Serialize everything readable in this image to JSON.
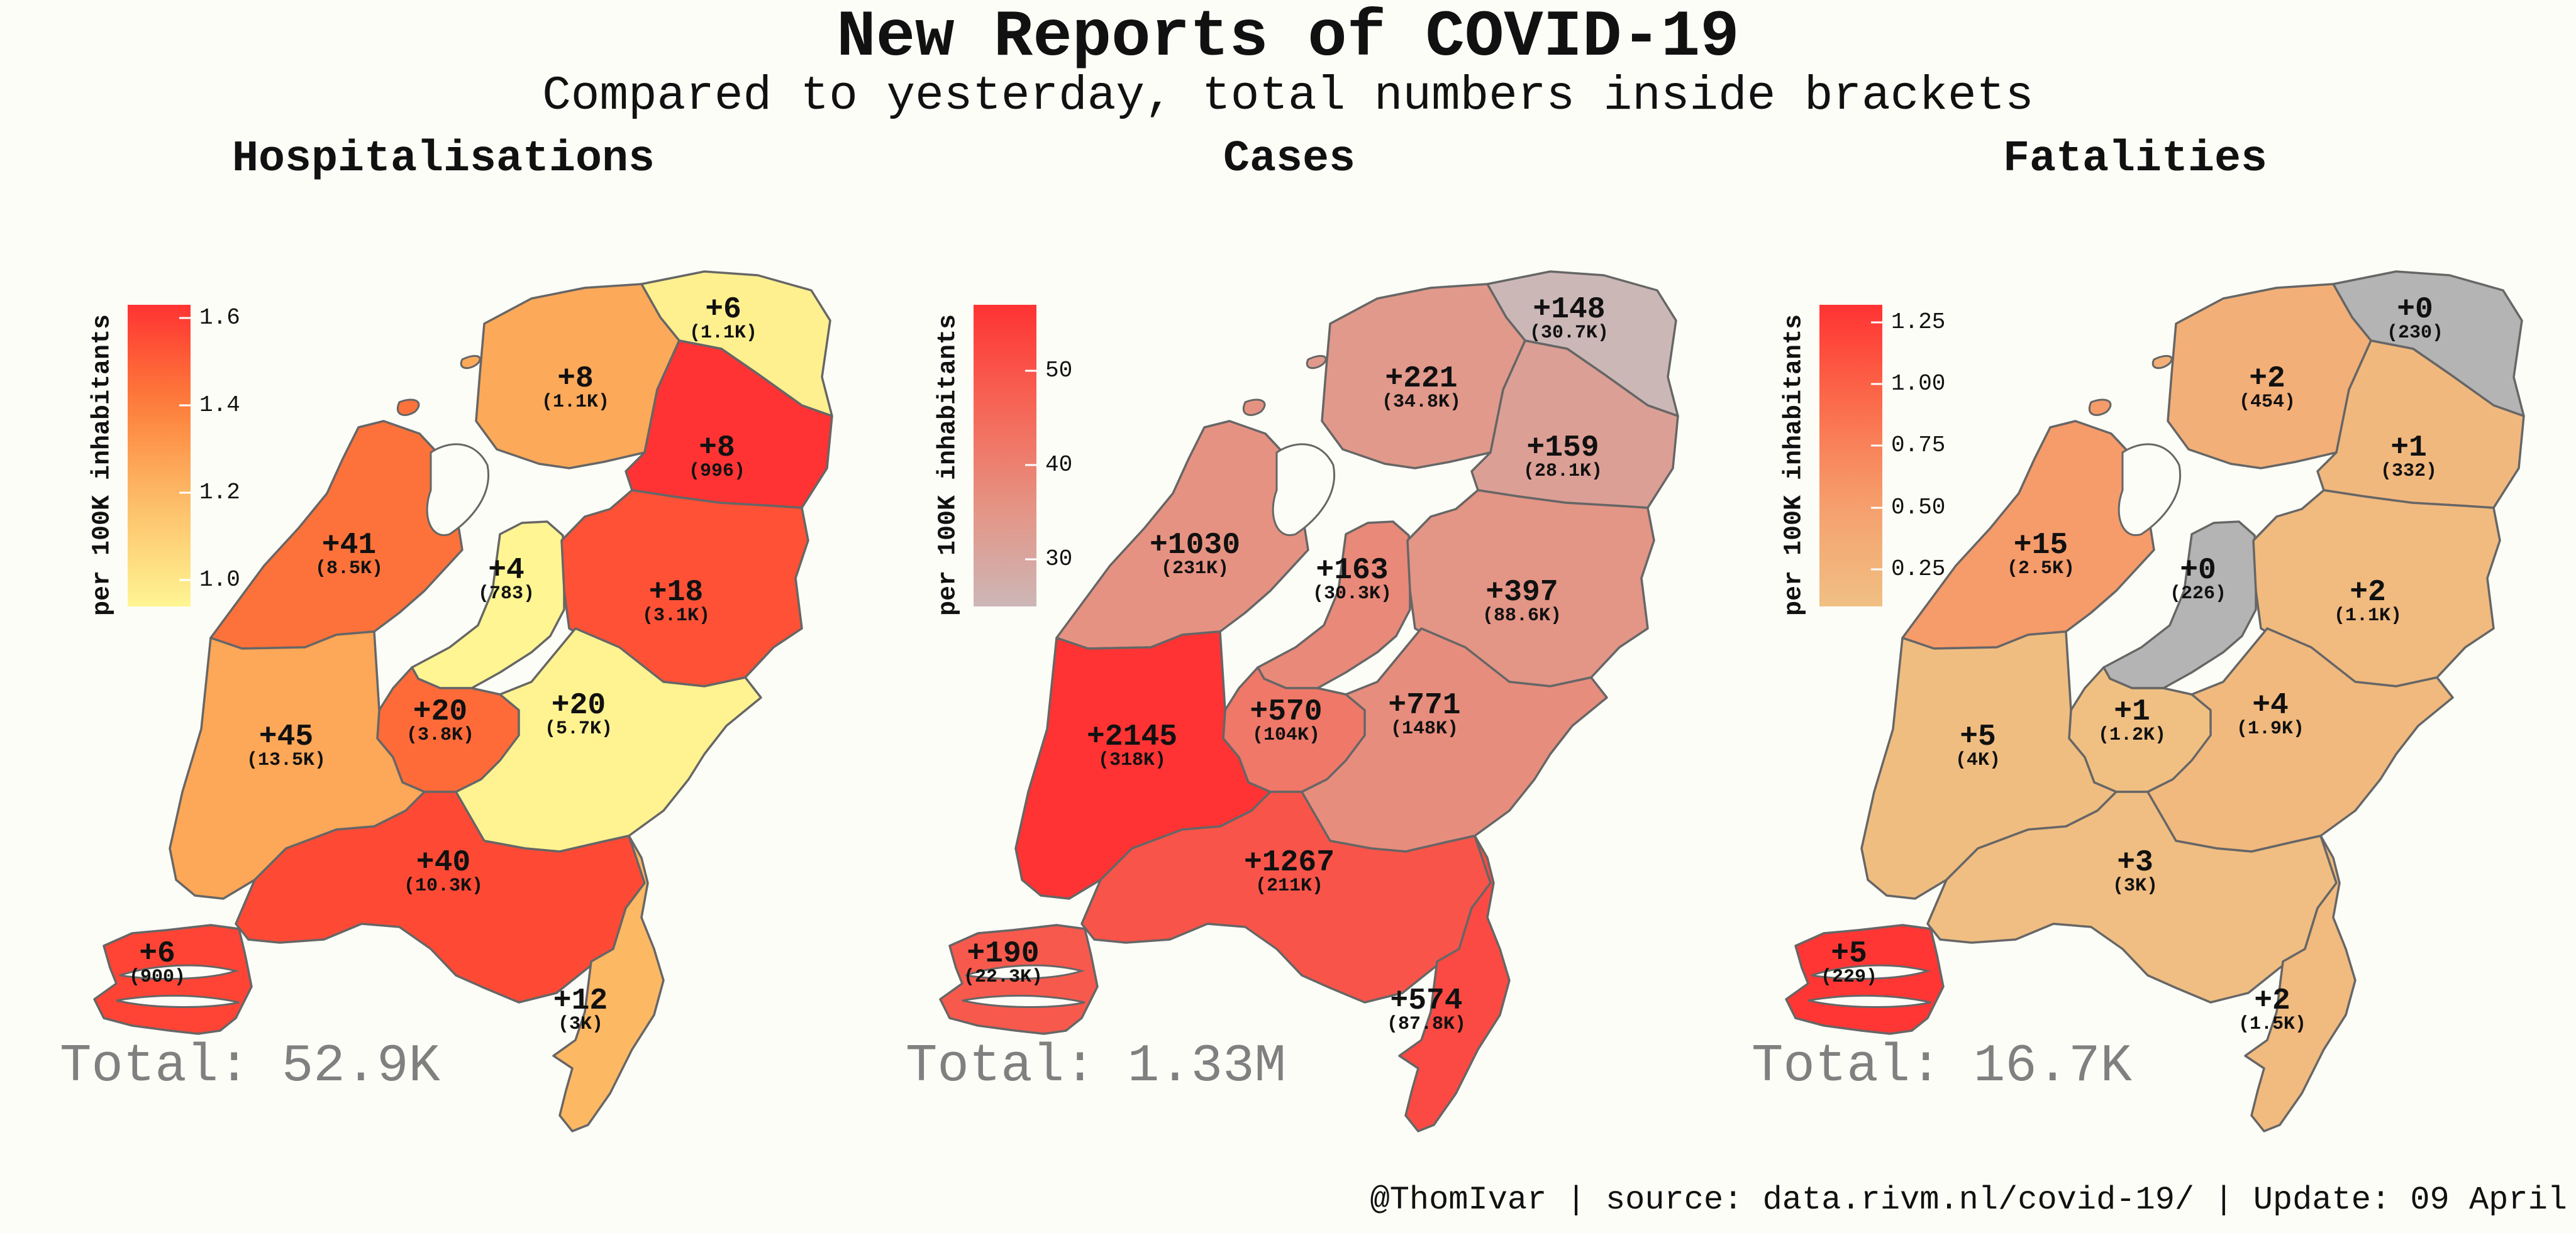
{
  "title": "New Reports of COVID-19",
  "subtitle": "Compared to yesterday, total numbers inside brackets",
  "footer": "@ThomIvar | source: data.rivm.nl/covid-19/ | Update: 09 April",
  "colors": {
    "background": "#fdfdf7",
    "border": "#666666",
    "no_data": "#b4b4b4"
  },
  "panels": [
    {
      "title": "Hospitalisations",
      "legend_title": "per 100K inhabitants",
      "legend_ticks": [
        {
          "label": "1.6",
          "value": 1.6
        },
        {
          "label": "1.4",
          "value": 1.4
        },
        {
          "label": "1.2",
          "value": 1.2
        },
        {
          "label": "1.0",
          "value": 1.0
        }
      ],
      "legend_range": [
        0.94,
        1.63
      ],
      "legend_colors": [
        "#fff593",
        "#fdc06a",
        "#fd7f3b",
        "#ff3333"
      ],
      "total": "Total: 52.9K",
      "provinces": [
        {
          "province": "Groningen",
          "change": "+6",
          "total": "(1.1K)",
          "value": 0.96
        },
        {
          "province": "Friesland",
          "change": "+8",
          "total": "(1.1K)",
          "value": 1.25
        },
        {
          "province": "Drenthe",
          "change": "+8",
          "total": "(996)",
          "value": 1.63
        },
        {
          "province": "Noord-Holland",
          "change": "+41",
          "total": "(8.5K)",
          "value": 1.44
        },
        {
          "province": "Flevoland",
          "change": "+4",
          "total": "(783)",
          "value": 0.94
        },
        {
          "province": "Overijssel",
          "change": "+18",
          "total": "(3.1K)",
          "value": 1.54
        },
        {
          "province": "Gelderland",
          "change": "+20",
          "total": "(5.7K)",
          "value": 0.95
        },
        {
          "province": "Utrecht",
          "change": "+20",
          "total": "(3.8K)",
          "value": 1.46
        },
        {
          "province": "Zuid-Holland",
          "change": "+45",
          "total": "(13.5K)",
          "value": 1.26
        },
        {
          "province": "Noord-Brabant",
          "change": "+40",
          "total": "(10.3K)",
          "value": 1.56
        },
        {
          "province": "Zeeland",
          "change": "+6",
          "total": "(900)",
          "value": 1.58
        },
        {
          "province": "Limburg",
          "change": "+12",
          "total": "(3K)",
          "value": 1.2
        }
      ]
    },
    {
      "title": "Cases",
      "legend_title": "per 100K inhabitants",
      "legend_ticks": [
        {
          "label": "50",
          "value": 50
        },
        {
          "label": "40",
          "value": 40
        },
        {
          "label": "30",
          "value": 30
        }
      ],
      "legend_range": [
        25,
        57
      ],
      "legend_colors": [
        "#ccb7b7",
        "#e59383",
        "#f66555",
        "#ff3333"
      ],
      "total": "Total: 1.33M",
      "provinces": [
        {
          "province": "Groningen",
          "change": "+148",
          "total": "(30.7K)",
          "value": 25
        },
        {
          "province": "Friesland",
          "change": "+221",
          "total": "(34.8K)",
          "value": 34
        },
        {
          "province": "Drenthe",
          "change": "+159",
          "total": "(28.1K)",
          "value": 32
        },
        {
          "province": "Noord-Holland",
          "change": "+1030",
          "total": "(231K)",
          "value": 36
        },
        {
          "province": "Flevoland",
          "change": "+163",
          "total": "(30.3K)",
          "value": 38
        },
        {
          "province": "Overijssel",
          "change": "+397",
          "total": "(88.6K)",
          "value": 35
        },
        {
          "province": "Gelderland",
          "change": "+771",
          "total": "(148K)",
          "value": 37
        },
        {
          "province": "Utrecht",
          "change": "+570",
          "total": "(104K)",
          "value": 42
        },
        {
          "province": "Zuid-Holland",
          "change": "+2145",
          "total": "(318K)",
          "value": 57
        },
        {
          "province": "Noord-Brabant",
          "change": "+1267",
          "total": "(211K)",
          "value": 50
        },
        {
          "province": "Zeeland",
          "change": "+190",
          "total": "(22.3K)",
          "value": 49
        },
        {
          "province": "Limburg",
          "change": "+574",
          "total": "(87.8K)",
          "value": 52
        }
      ]
    },
    {
      "title": "Fatalities",
      "legend_title": "per 100K inhabitants",
      "legend_ticks": [
        {
          "label": "1.25",
          "value": 1.25
        },
        {
          "label": "1.00",
          "value": 1.0
        },
        {
          "label": "0.75",
          "value": 0.75
        },
        {
          "label": "0.50",
          "value": 0.5
        },
        {
          "label": "0.25",
          "value": 0.25
        }
      ],
      "legend_range": [
        0.1,
        1.32
      ],
      "legend_colors": [
        "#f0c083",
        "#f5a06e",
        "#fb6d4b",
        "#ff3333"
      ],
      "total": "Total: 16.7K",
      "provinces": [
        {
          "province": "Groningen",
          "change": "+0",
          "total": "(230)",
          "value": null
        },
        {
          "province": "Friesland",
          "change": "+2",
          "total": "(454)",
          "value": 0.31
        },
        {
          "province": "Drenthe",
          "change": "+1",
          "total": "(332)",
          "value": 0.2
        },
        {
          "province": "Noord-Holland",
          "change": "+15",
          "total": "(2.5K)",
          "value": 0.55
        },
        {
          "province": "Flevoland",
          "change": "+0",
          "total": "(226)",
          "value": null
        },
        {
          "province": "Overijssel",
          "change": "+2",
          "total": "(1.1K)",
          "value": 0.17
        },
        {
          "province": "Gelderland",
          "change": "+4",
          "total": "(1.9K)",
          "value": 0.19
        },
        {
          "province": "Utrecht",
          "change": "+1",
          "total": "(1.2K)",
          "value": 0.07
        },
        {
          "province": "Zuid-Holland",
          "change": "+5",
          "total": "(4K)",
          "value": 0.14
        },
        {
          "province": "Noord-Brabant",
          "change": "+3",
          "total": "(3K)",
          "value": 0.12
        },
        {
          "province": "Zeeland",
          "change": "+5",
          "total": "(229)",
          "value": 1.3
        },
        {
          "province": "Limburg",
          "change": "+2",
          "total": "(1.5K)",
          "value": 0.18
        }
      ]
    }
  ]
}
